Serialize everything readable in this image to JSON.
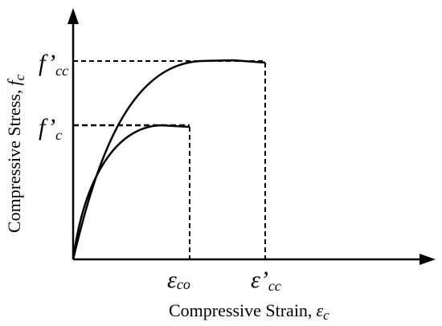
{
  "diagram": {
    "y_axis_label": "Compressive Stress,",
    "y_axis_symbol": "f",
    "y_axis_symbol_sub": "c",
    "x_axis_label": "Compressive Strain,",
    "x_axis_symbol": "ε",
    "x_axis_symbol_sub": "c",
    "y_ticks": [
      {
        "symbol": "f’",
        "sub": "cc"
      },
      {
        "symbol": "f’",
        "sub": "c"
      }
    ],
    "x_ticks": [
      {
        "symbol": "ε",
        "sub": "co"
      },
      {
        "symbol": "ε’",
        "sub": "cc"
      }
    ]
  }
}
